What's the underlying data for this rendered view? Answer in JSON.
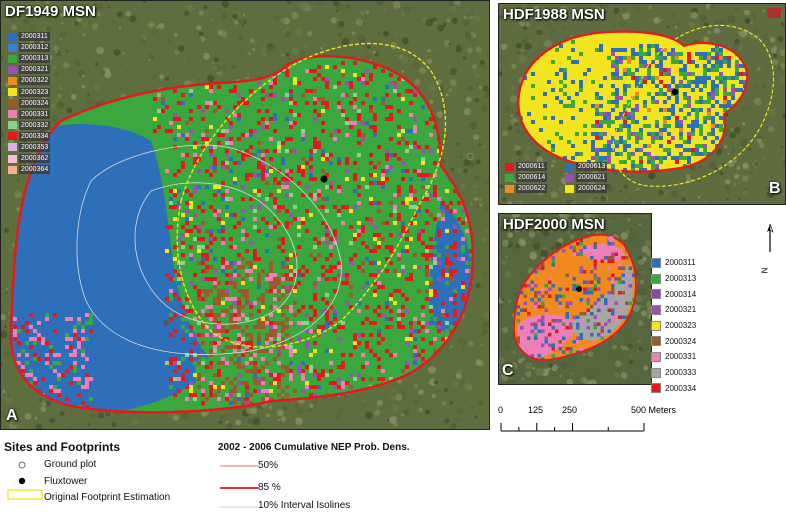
{
  "panels": {
    "a": {
      "title": "DF1949 MSN",
      "letter": "A",
      "legend": [
        "2000311",
        "2000312",
        "2000313",
        "2000321",
        "2000322",
        "2000323",
        "2000324",
        "2000331",
        "2000332",
        "2000334",
        "2000353",
        "2000362",
        "2000364"
      ]
    },
    "b": {
      "title": "HDF1988 MSN",
      "letter": "B",
      "legend": [
        "2000611",
        "2000613",
        "2000614",
        "2000621",
        "2000622",
        "2000624"
      ]
    },
    "c": {
      "title": "HDF2000 MSN",
      "letter": "C",
      "legend": [
        "2000311",
        "2000313",
        "2000314",
        "2000321",
        "2000323",
        "2000324",
        "2000331",
        "2000333",
        "2000334"
      ]
    }
  },
  "colors": {
    "c2000311": "#2e6fb9",
    "c2000312": "#3b7fd0",
    "c2000313": "#3aa83f",
    "c2000321": "#9b4fb8",
    "c2000322": "#f08a1e",
    "c2000323": "#f2e41e",
    "c2000324": "#9b5a2a",
    "c2000331": "#ef7fb8",
    "c2000332": "#8fd18a",
    "c2000334": "#e31a1c",
    "c2000353": "#d7b0e8",
    "c2000362": "#f7c0d9",
    "c2000364": "#f5b38a",
    "c2000333": "#a6a6a6",
    "c2000314": "#8e44ad",
    "c2000611": "#e31a1c",
    "c2000613": "#2e6fb9",
    "c2000614": "#3aa83f",
    "c2000621": "#9b4fb8",
    "c2000622": "#f08a1e",
    "c2000624": "#f2e41e"
  },
  "north_arrow": {
    "label": "N"
  },
  "scale_bar": {
    "ticks": [
      "0",
      "125",
      "250",
      "500 Meters"
    ],
    "tick_values_m": [
      0,
      125,
      250,
      500
    ]
  },
  "legend_sites": {
    "heading": "Sites and Footprints",
    "ground_plot": "Ground plot",
    "fluxtower": "Fluxtower",
    "footprint": "Original Footprint Estimation"
  },
  "legend_nep": {
    "heading": "2002 - 2006 Cumulative NEP Prob. Dens.",
    "p50": "50%",
    "p85": "85 %",
    "iso": "10% Interval Isolines"
  }
}
